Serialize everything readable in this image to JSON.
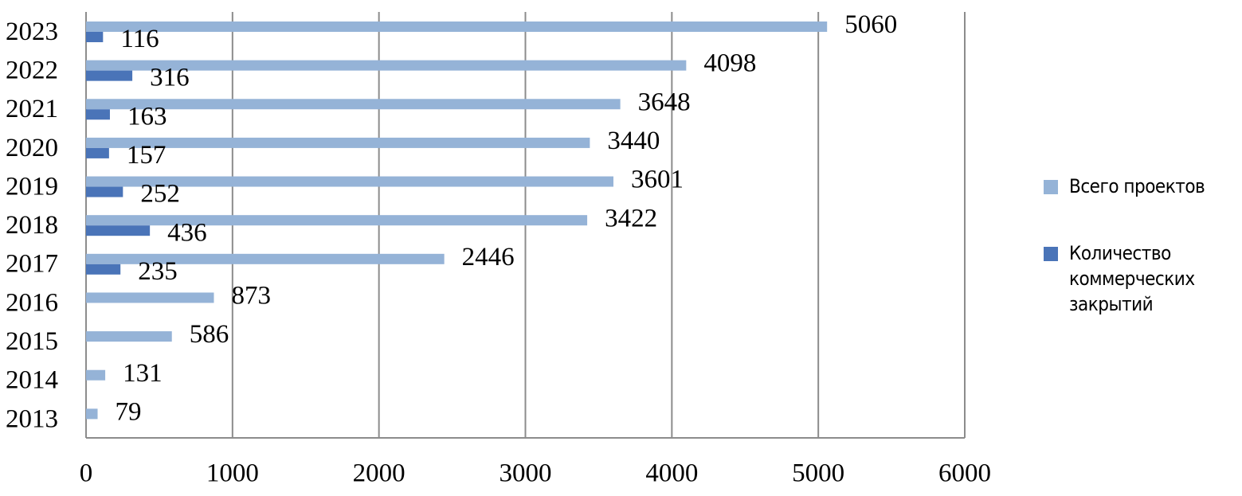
{
  "chart_data": {
    "type": "bar",
    "orientation": "horizontal",
    "categories": [
      "2023",
      "2022",
      "2021",
      "2020",
      "2019",
      "2018",
      "2017",
      "2016",
      "2015",
      "2014",
      "2013"
    ],
    "series": [
      {
        "name": "Всего проектов",
        "color": "#95b3d7",
        "values": [
          5060,
          4098,
          3648,
          3440,
          3601,
          3422,
          2446,
          873,
          586,
          131,
          79
        ]
      },
      {
        "name": "Количество коммерческих закрытий",
        "color": "#4a74b8",
        "values": [
          116,
          316,
          163,
          157,
          252,
          436,
          235,
          null,
          null,
          null,
          null
        ]
      }
    ],
    "xlim": [
      0,
      6000
    ],
    "xticks": [
      0,
      1000,
      2000,
      3000,
      4000,
      5000,
      6000
    ],
    "grid": true,
    "legend": "right"
  }
}
